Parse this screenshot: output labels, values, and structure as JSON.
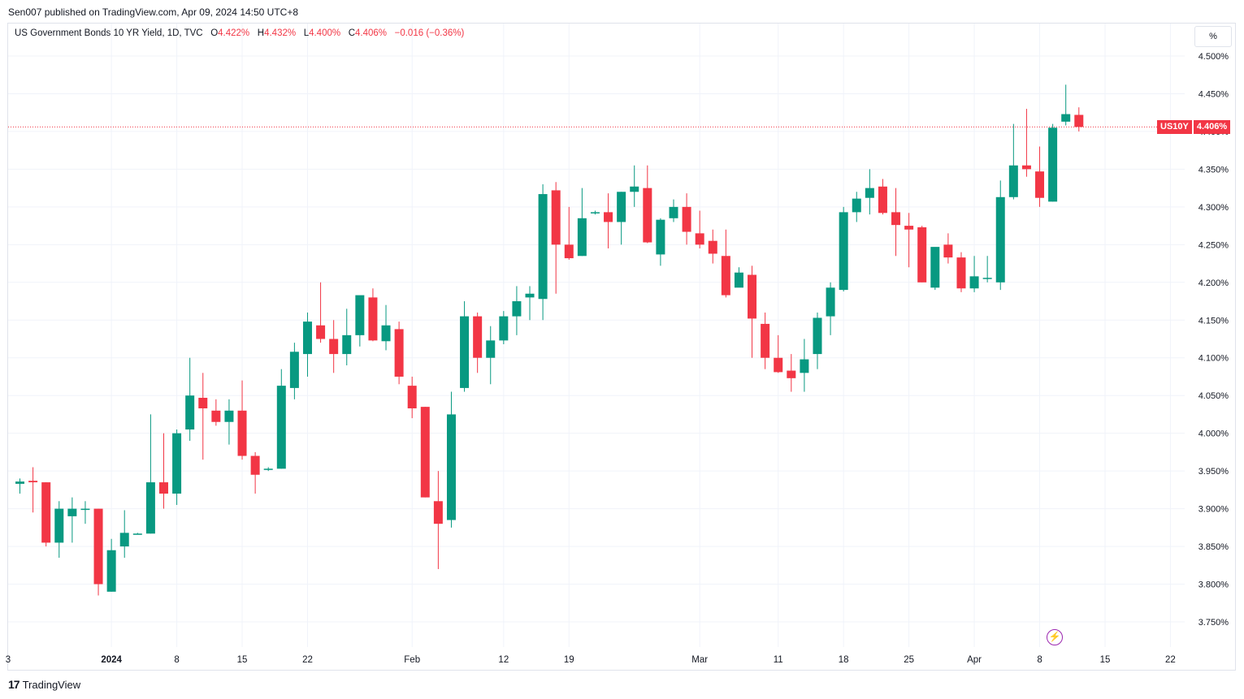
{
  "header": {
    "publisher_line": "Sen007 published on TradingView.com, Apr 09, 2024 14:50 UTC+8"
  },
  "legend": {
    "title": "US Government Bonds 10 YR Yield, 1D, TVC",
    "o_label": "O",
    "o_value": "4.422%",
    "h_label": "H",
    "h_value": "4.432%",
    "l_label": "L",
    "l_value": "4.400%",
    "c_label": "C",
    "c_value": "4.406%",
    "change": "−0.016 (−0.36%)"
  },
  "unit_button": "%",
  "price_tag": {
    "symbol": "US10Y",
    "value": "4.406%"
  },
  "footer": {
    "brand": "TradingView",
    "logo_glyph": "17"
  },
  "colors": {
    "up": "#089981",
    "down": "#f23645",
    "grid": "#f0f3fa",
    "text": "#131722"
  },
  "chart_data": {
    "type": "candlestick",
    "series_name": "US10Y",
    "last_price": 4.406,
    "ylim": [
      3.73,
      4.515
    ],
    "y_ticks": [
      "4.500%",
      "4.450%",
      "4.400%",
      "4.350%",
      "4.300%",
      "4.250%",
      "4.200%",
      "4.150%",
      "4.100%",
      "4.050%",
      "4.000%",
      "3.950%",
      "3.900%",
      "3.850%",
      "3.800%",
      "3.750%"
    ],
    "y_tick_values": [
      4.5,
      4.45,
      4.4,
      4.35,
      4.3,
      4.25,
      4.2,
      4.15,
      4.1,
      4.05,
      4.0,
      3.95,
      3.9,
      3.85,
      3.8,
      3.75
    ],
    "x_ticks": [
      {
        "label": "3",
        "index": -1
      },
      {
        "label": "2024",
        "index": 7,
        "bold": true
      },
      {
        "label": "8",
        "index": 12
      },
      {
        "label": "15",
        "index": 17
      },
      {
        "label": "22",
        "index": 22
      },
      {
        "label": "Feb",
        "index": 30
      },
      {
        "label": "12",
        "index": 37
      },
      {
        "label": "19",
        "index": 42
      },
      {
        "label": "Mar",
        "index": 52
      },
      {
        "label": "11",
        "index": 58
      },
      {
        "label": "18",
        "index": 63
      },
      {
        "label": "25",
        "index": 68
      },
      {
        "label": "Apr",
        "index": 73
      },
      {
        "label": "8",
        "index": 78
      },
      {
        "label": "15",
        "index": 83
      },
      {
        "label": "22",
        "index": 88
      }
    ],
    "candles": [
      {
        "o": 3.933,
        "h": 3.94,
        "l": 3.92,
        "c": 3.936
      },
      {
        "o": 3.937,
        "h": 3.955,
        "l": 3.895,
        "c": 3.935
      },
      {
        "o": 3.935,
        "h": 3.935,
        "l": 3.85,
        "c": 3.855
      },
      {
        "o": 3.855,
        "h": 3.91,
        "l": 3.835,
        "c": 3.9
      },
      {
        "o": 3.89,
        "h": 3.915,
        "l": 3.855,
        "c": 3.9
      },
      {
        "o": 3.9,
        "h": 3.91,
        "l": 3.88,
        "c": 3.9
      },
      {
        "o": 3.9,
        "h": 3.9,
        "l": 3.785,
        "c": 3.8
      },
      {
        "o": 3.79,
        "h": 3.86,
        "l": 3.79,
        "c": 3.845
      },
      {
        "o": 3.85,
        "h": 3.898,
        "l": 3.835,
        "c": 3.868
      },
      {
        "o": 3.867,
        "h": 3.868,
        "l": 3.866,
        "c": 3.867
      },
      {
        "o": 3.867,
        "h": 4.025,
        "l": 3.867,
        "c": 3.935
      },
      {
        "o": 3.935,
        "h": 4.0,
        "l": 3.9,
        "c": 3.92
      },
      {
        "o": 3.92,
        "h": 4.005,
        "l": 3.905,
        "c": 4.0
      },
      {
        "o": 4.005,
        "h": 4.1,
        "l": 3.99,
        "c": 4.05
      },
      {
        "o": 4.047,
        "h": 4.08,
        "l": 3.965,
        "c": 4.033
      },
      {
        "o": 4.03,
        "h": 4.045,
        "l": 4.01,
        "c": 4.015
      },
      {
        "o": 4.015,
        "h": 4.045,
        "l": 3.985,
        "c": 4.03
      },
      {
        "o": 4.03,
        "h": 4.07,
        "l": 3.965,
        "c": 3.97
      },
      {
        "o": 3.97,
        "h": 3.975,
        "l": 3.92,
        "c": 3.945
      },
      {
        "o": 3.952,
        "h": 3.955,
        "l": 3.95,
        "c": 3.953
      },
      {
        "o": 3.953,
        "h": 4.085,
        "l": 3.953,
        "c": 4.063
      },
      {
        "o": 4.06,
        "h": 4.12,
        "l": 4.045,
        "c": 4.108
      },
      {
        "o": 4.105,
        "h": 4.16,
        "l": 4.075,
        "c": 4.148
      },
      {
        "o": 4.143,
        "h": 4.2,
        "l": 4.12,
        "c": 4.125
      },
      {
        "o": 4.125,
        "h": 4.15,
        "l": 4.08,
        "c": 4.105
      },
      {
        "o": 4.105,
        "h": 4.165,
        "l": 4.09,
        "c": 4.13
      },
      {
        "o": 4.13,
        "h": 4.18,
        "l": 4.115,
        "c": 4.183
      },
      {
        "o": 4.18,
        "h": 4.192,
        "l": 4.122,
        "c": 4.123
      },
      {
        "o": 4.122,
        "h": 4.17,
        "l": 4.11,
        "c": 4.143
      },
      {
        "o": 4.138,
        "h": 4.148,
        "l": 4.065,
        "c": 4.075
      },
      {
        "o": 4.063,
        "h": 4.075,
        "l": 4.02,
        "c": 4.033
      },
      {
        "o": 4.035,
        "h": 4.035,
        "l": 3.915,
        "c": 3.915
      },
      {
        "o": 3.91,
        "h": 3.95,
        "l": 3.82,
        "c": 3.88
      },
      {
        "o": 3.885,
        "h": 4.055,
        "l": 3.875,
        "c": 4.025
      },
      {
        "o": 4.06,
        "h": 4.175,
        "l": 4.055,
        "c": 4.155
      },
      {
        "o": 4.155,
        "h": 4.16,
        "l": 4.08,
        "c": 4.1
      },
      {
        "o": 4.1,
        "h": 4.142,
        "l": 4.065,
        "c": 4.123
      },
      {
        "o": 4.123,
        "h": 4.162,
        "l": 4.118,
        "c": 4.155
      },
      {
        "o": 4.155,
        "h": 4.195,
        "l": 4.13,
        "c": 4.175
      },
      {
        "o": 4.18,
        "h": 4.195,
        "l": 4.15,
        "c": 4.185
      },
      {
        "o": 4.178,
        "h": 4.33,
        "l": 4.15,
        "c": 4.317
      },
      {
        "o": 4.322,
        "h": 4.333,
        "l": 4.185,
        "c": 4.25
      },
      {
        "o": 4.25,
        "h": 4.3,
        "l": 4.23,
        "c": 4.232
      },
      {
        "o": 4.235,
        "h": 4.325,
        "l": 4.235,
        "c": 4.285
      },
      {
        "o": 4.293,
        "h": 4.295,
        "l": 4.29,
        "c": 4.293
      },
      {
        "o": 4.293,
        "h": 4.318,
        "l": 4.245,
        "c": 4.28
      },
      {
        "o": 4.28,
        "h": 4.32,
        "l": 4.25,
        "c": 4.32
      },
      {
        "o": 4.32,
        "h": 4.355,
        "l": 4.3,
        "c": 4.327
      },
      {
        "o": 4.325,
        "h": 4.355,
        "l": 4.252,
        "c": 4.253
      },
      {
        "o": 4.237,
        "h": 4.285,
        "l": 4.222,
        "c": 4.283
      },
      {
        "o": 4.285,
        "h": 4.31,
        "l": 4.28,
        "c": 4.3
      },
      {
        "o": 4.3,
        "h": 4.318,
        "l": 4.25,
        "c": 4.267
      },
      {
        "o": 4.265,
        "h": 4.295,
        "l": 4.245,
        "c": 4.25
      },
      {
        "o": 4.255,
        "h": 4.27,
        "l": 4.225,
        "c": 4.238
      },
      {
        "o": 4.235,
        "h": 4.27,
        "l": 4.18,
        "c": 4.183
      },
      {
        "o": 4.193,
        "h": 4.22,
        "l": 4.195,
        "c": 4.213
      },
      {
        "o": 4.21,
        "h": 4.222,
        "l": 4.1,
        "c": 4.152
      },
      {
        "o": 4.145,
        "h": 4.16,
        "l": 4.085,
        "c": 4.1
      },
      {
        "o": 4.1,
        "h": 4.13,
        "l": 4.08,
        "c": 4.081
      },
      {
        "o": 4.083,
        "h": 4.105,
        "l": 4.055,
        "c": 4.073
      },
      {
        "o": 4.08,
        "h": 4.125,
        "l": 4.055,
        "c": 4.098
      },
      {
        "o": 4.105,
        "h": 4.16,
        "l": 4.085,
        "c": 4.153
      },
      {
        "o": 4.155,
        "h": 4.2,
        "l": 4.13,
        "c": 4.193
      },
      {
        "o": 4.19,
        "h": 4.3,
        "l": 4.188,
        "c": 4.293
      },
      {
        "o": 4.293,
        "h": 4.32,
        "l": 4.28,
        "c": 4.311
      },
      {
        "o": 4.312,
        "h": 4.35,
        "l": 4.29,
        "c": 4.325
      },
      {
        "o": 4.327,
        "h": 4.337,
        "l": 4.29,
        "c": 4.292
      },
      {
        "o": 4.293,
        "h": 4.325,
        "l": 4.235,
        "c": 4.276
      },
      {
        "o": 4.275,
        "h": 4.292,
        "l": 4.22,
        "c": 4.27
      },
      {
        "o": 4.273,
        "h": 4.275,
        "l": 4.2,
        "c": 4.2
      },
      {
        "o": 4.193,
        "h": 4.245,
        "l": 4.19,
        "c": 4.247
      },
      {
        "o": 4.25,
        "h": 4.265,
        "l": 4.225,
        "c": 4.233
      },
      {
        "o": 4.233,
        "h": 4.24,
        "l": 4.187,
        "c": 4.192
      },
      {
        "o": 4.192,
        "h": 4.235,
        "l": 4.187,
        "c": 4.208
      },
      {
        "o": 4.205,
        "h": 4.235,
        "l": 4.2,
        "c": 4.206
      },
      {
        "o": 4.2,
        "h": 4.335,
        "l": 4.19,
        "c": 4.313
      },
      {
        "o": 4.313,
        "h": 4.41,
        "l": 4.31,
        "c": 4.355
      },
      {
        "o": 4.355,
        "h": 4.43,
        "l": 4.34,
        "c": 4.35
      },
      {
        "o": 4.347,
        "h": 4.38,
        "l": 4.3,
        "c": 4.312
      },
      {
        "o": 4.307,
        "h": 4.41,
        "l": 4.307,
        "c": 4.405
      },
      {
        "o": 4.413,
        "h": 4.462,
        "l": 4.408,
        "c": 4.423
      },
      {
        "o": 4.422,
        "h": 4.432,
        "l": 4.4,
        "c": 4.406
      }
    ]
  }
}
